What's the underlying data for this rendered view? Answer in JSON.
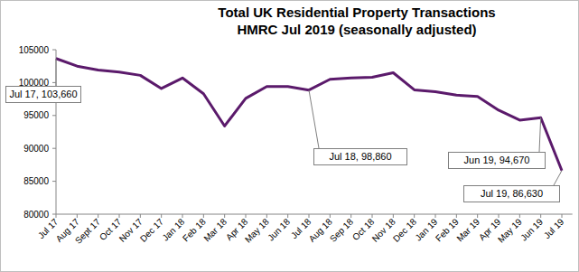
{
  "chart_data": {
    "type": "line",
    "title": "Total UK Residential Property Transactions",
    "subtitle": "HMRC Jul 2019 (seasonally adjusted)",
    "categories": [
      "Jul 17",
      "Aug 17",
      "Sept 17",
      "Oct 17",
      "Nov 17",
      "Dec 17",
      "Jan 18",
      "Feb 18",
      "Mar 18",
      "Apr 18",
      "May 18",
      "Jun 18",
      "Jul 18",
      "Aug 18",
      "Sep 18",
      "Oct 18",
      "Nov 18",
      "Dec 18",
      "Jan 19",
      "Feb 19",
      "Mar 19",
      "Apr 19",
      "May 19",
      "Jun 19",
      "Jul 19"
    ],
    "values": [
      103660,
      102500,
      101900,
      101600,
      101100,
      99100,
      100700,
      98300,
      93400,
      97600,
      99400,
      99400,
      98860,
      100500,
      100700,
      100800,
      101500,
      98900,
      98600,
      98100,
      97900,
      95800,
      94300,
      94670,
      86630
    ],
    "color": "#5b1a6b",
    "ylim": [
      80000,
      105000
    ],
    "yticks": [
      80000,
      85000,
      90000,
      95000,
      100000,
      105000
    ],
    "grid": false,
    "annotations": [
      {
        "x": "Jul 17",
        "y": 103660,
        "text": "Jul 17, 103,660"
      },
      {
        "x": "Jul 18",
        "y": 98860,
        "text": "Jul 18, 98,860"
      },
      {
        "x": "Jun 19",
        "y": 94670,
        "text": "Jun 19, 94,670"
      },
      {
        "x": "Jul 19",
        "y": 86630,
        "text": "Jul 19, 86,630"
      }
    ]
  }
}
